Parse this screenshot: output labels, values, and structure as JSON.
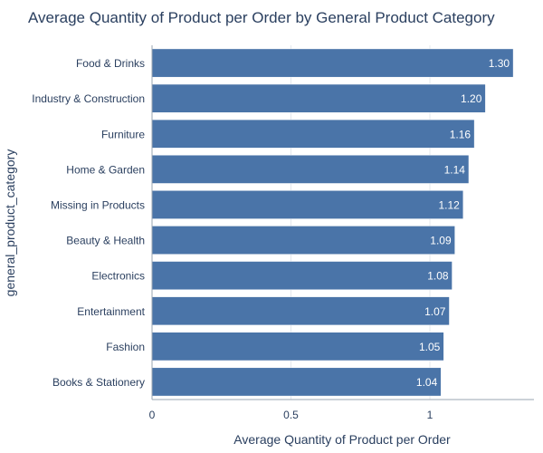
{
  "chart_data": {
    "type": "bar",
    "orientation": "horizontal",
    "title": "Average Quantity of Product per Order by General Product Category",
    "xlabel": "Average Quantity of Product per Order",
    "ylabel": "general_product_category",
    "xlim": [
      0,
      1.3
    ],
    "xticks": [
      0,
      0.5,
      1
    ],
    "xtick_labels": [
      "0",
      "0.5",
      "1"
    ],
    "grid": true,
    "categories": [
      "Food & Drinks",
      "Industry & Construction",
      "Furniture",
      "Home & Garden",
      "Missing in Products",
      "Beauty & Health",
      "Electronics",
      "Entertainment",
      "Fashion",
      "Books & Stationery"
    ],
    "values": [
      1.3,
      1.2,
      1.16,
      1.14,
      1.12,
      1.09,
      1.08,
      1.07,
      1.05,
      1.04
    ],
    "value_labels": [
      "1.30",
      "1.20",
      "1.16",
      "1.14",
      "1.12",
      "1.09",
      "1.08",
      "1.07",
      "1.05",
      "1.04"
    ],
    "colors": {
      "bar": "#4a74a8",
      "bar_edge": "#ffffff",
      "text": "#2a3f5f",
      "grid": "#e4e8ee",
      "axis": "#9aa4b1",
      "value_label": "#ffffff"
    }
  }
}
